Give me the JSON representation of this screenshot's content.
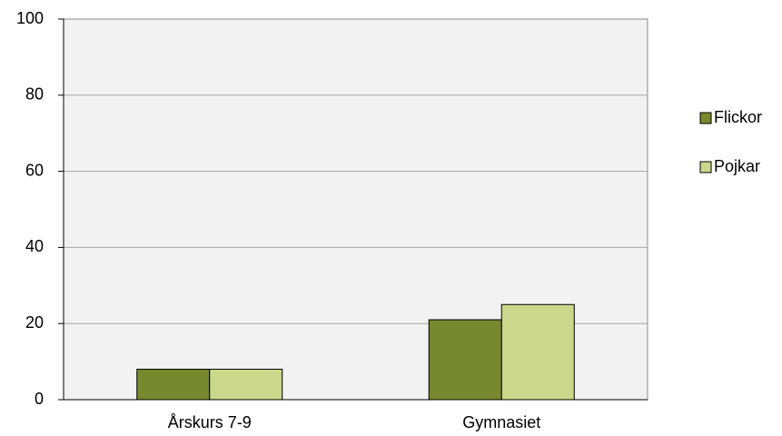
{
  "chart_data": {
    "type": "bar",
    "categories": [
      "Årskurs 7-9",
      "Gymnasiet"
    ],
    "series": [
      {
        "name": "Flickor",
        "color": "#77892d",
        "values": [
          8,
          21
        ]
      },
      {
        "name": "Pojkar",
        "color": "#c9d88a",
        "values": [
          8,
          25
        ]
      }
    ],
    "ylim": [
      0,
      100
    ],
    "yticks": [
      0,
      20,
      40,
      60,
      80,
      100
    ],
    "grid": true,
    "legend": "right"
  }
}
